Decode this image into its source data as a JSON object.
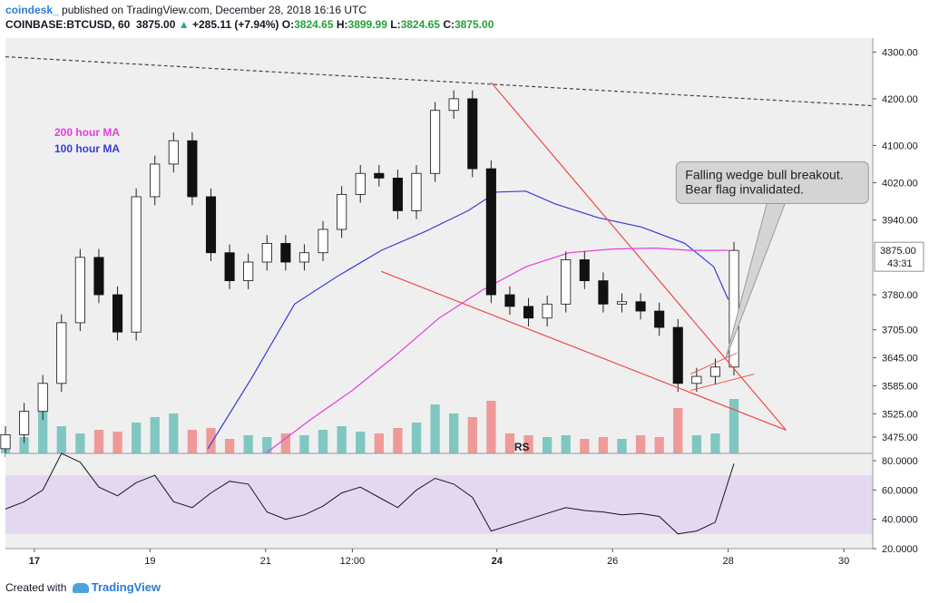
{
  "header": {
    "publisher": "coindesk_",
    "published_text": "published on TradingView.com, December 28, 2018 16:16 UTC",
    "symbol": "COINBASE:BTCUSD, 60",
    "last_price": "3875.00",
    "change": "+285.11 (+7.94%)",
    "o_label": "O:",
    "o_value": "3824.65",
    "h_label": "H:",
    "h_value": "3899.99",
    "l_label": "L:",
    "l_value": "3824.65",
    "c_label": "C:",
    "c_value": "3875.00"
  },
  "footer": {
    "created_with": "Created with",
    "brand": "TradingView"
  },
  "colors": {
    "up": "#26a69a",
    "down": "#ef5350",
    "ma200": "#e040e0",
    "ma100": "#3a3ad8",
    "wedge": "#f04848",
    "rsi_band": "#e4d8f0",
    "rsi_line": "#131722",
    "bg": "#efefef"
  },
  "chart_data": {
    "type": "candlestick",
    "x_ticks": [
      "17",
      "19",
      "21",
      "12:00",
      "24",
      "26",
      "28",
      "30"
    ],
    "price_ticks": [
      "4300.00",
      "4200.00",
      "4100.00",
      "4020.00",
      "3940.00",
      "3875.00",
      "3780.00",
      "3705.00",
      "3645.00",
      "3585.00",
      "3525.00",
      "3475.00"
    ],
    "price_marker": {
      "value": "3875.00",
      "countdown": "43:31"
    },
    "legend": [
      {
        "name": "200 hour MA",
        "color": "#e040e0"
      },
      {
        "name": "100 hour MA",
        "color": "#3a3ad8"
      }
    ],
    "annotation": "Falling wedge bull breakout.\nBear flag invalidated.",
    "pattern_label": "RS",
    "rsi": {
      "ticks": [
        "80.0000",
        "60.0000",
        "40.0000",
        "20.0000"
      ],
      "band": [
        30,
        70
      ],
      "ylim": [
        20,
        85
      ]
    },
    "x_domain": [
      0,
      30
    ],
    "price_ylim": [
      3440,
      4330
    ],
    "close": [
      3480,
      3530,
      3590,
      3720,
      3860,
      3780,
      3700,
      3990,
      4060,
      4110,
      3990,
      3870,
      3810,
      3850,
      3890,
      3850,
      3870,
      3920,
      3995,
      4040,
      4030,
      3960,
      4040,
      4175,
      4200,
      4050,
      3780,
      3755,
      3730,
      3760,
      3855,
      3810,
      3760,
      3765,
      3745,
      3710,
      3590,
      3605,
      3625,
      3875
    ],
    "ma100": [
      [
        7.0,
        3450
      ],
      [
        8.5,
        3600
      ],
      [
        10.0,
        3760
      ],
      [
        11.5,
        3820
      ],
      [
        13.0,
        3875
      ],
      [
        14.5,
        3915
      ],
      [
        16.0,
        3960
      ],
      [
        17.0,
        4000
      ],
      [
        18.0,
        4002
      ],
      [
        19.0,
        3975
      ],
      [
        20.5,
        3945
      ],
      [
        22.0,
        3925
      ],
      [
        23.5,
        3890
      ],
      [
        24.5,
        3840
      ],
      [
        25.0,
        3770
      ]
    ],
    "ma200": [
      [
        9.0,
        3440
      ],
      [
        10.5,
        3510
      ],
      [
        12.0,
        3575
      ],
      [
        13.5,
        3650
      ],
      [
        15.0,
        3730
      ],
      [
        16.5,
        3790
      ],
      [
        18.0,
        3840
      ],
      [
        19.5,
        3870
      ],
      [
        21.0,
        3878
      ],
      [
        22.5,
        3880
      ],
      [
        23.7,
        3875
      ],
      [
        25.0,
        3875
      ]
    ],
    "resistance_line": [
      [
        0.0,
        4290
      ],
      [
        30.0,
        4185
      ]
    ],
    "wedge_upper": [
      [
        16.8,
        4235
      ],
      [
        27.0,
        3490
      ]
    ],
    "wedge_lower": [
      [
        13.0,
        3830
      ],
      [
        27.0,
        3490
      ]
    ],
    "flag_upper": [
      [
        23.7,
        3610
      ],
      [
        25.3,
        3655
      ]
    ],
    "flag_lower": [
      [
        23.7,
        3575
      ],
      [
        25.9,
        3610
      ]
    ],
    "rsi_values": [
      47,
      52,
      60,
      85,
      79,
      62,
      56,
      65,
      70,
      52,
      48,
      58,
      66,
      64,
      45,
      40,
      43,
      49,
      58,
      62,
      55,
      48,
      60,
      68,
      64,
      55,
      32,
      36,
      40,
      44,
      48,
      46,
      45,
      43,
      44,
      42,
      30,
      32,
      38,
      78
    ]
  }
}
